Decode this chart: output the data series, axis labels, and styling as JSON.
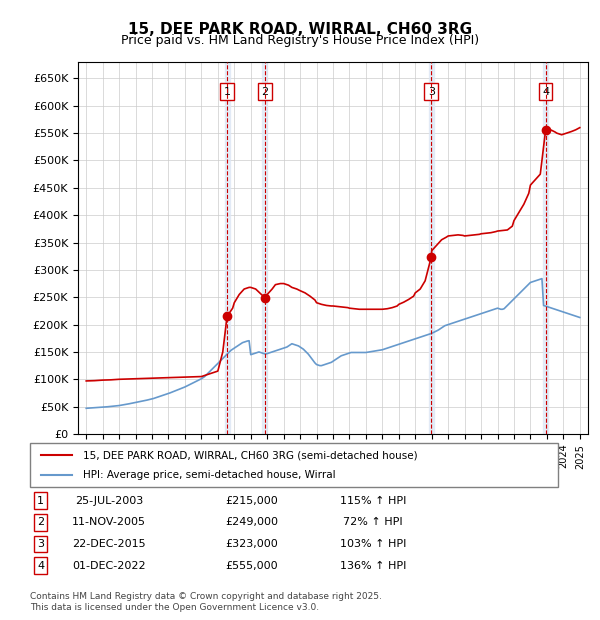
{
  "title": "15, DEE PARK ROAD, WIRRAL, CH60 3RG",
  "subtitle": "Price paid vs. HM Land Registry's House Price Index (HPI)",
  "legend_line1": "15, DEE PARK ROAD, WIRRAL, CH60 3RG (semi-detached house)",
  "legend_line2": "HPI: Average price, semi-detached house, Wirral",
  "footer": "Contains HM Land Registry data © Crown copyright and database right 2025.\nThis data is licensed under the Open Government Licence v3.0.",
  "transactions": [
    {
      "num": 1,
      "date": "25-JUL-2003",
      "date_val": 2003.56,
      "price": 215000,
      "hpi_pct": "115% ↑ HPI"
    },
    {
      "num": 2,
      "date": "11-NOV-2005",
      "date_val": 2005.86,
      "price": 249000,
      "hpi_pct": "72% ↑ HPI"
    },
    {
      "num": 3,
      "date": "22-DEC-2015",
      "date_val": 2015.97,
      "price": 323000,
      "hpi_pct": "103% ↑ HPI"
    },
    {
      "num": 4,
      "date": "01-DEC-2022",
      "date_val": 2022.92,
      "price": 555000,
      "hpi_pct": "136% ↑ HPI"
    }
  ],
  "hpi_color": "#6699cc",
  "price_color": "#cc0000",
  "ylim": [
    0,
    680000
  ],
  "yticks": [
    0,
    50000,
    100000,
    150000,
    200000,
    250000,
    300000,
    350000,
    400000,
    450000,
    500000,
    550000,
    600000,
    650000
  ],
  "xlim_start": 1994.5,
  "xlim_end": 2025.5,
  "hpi_data_x": [
    1995.0,
    1995.1,
    1995.2,
    1995.3,
    1995.4,
    1995.5,
    1995.6,
    1995.7,
    1995.8,
    1995.9,
    1996.0,
    1996.1,
    1996.2,
    1996.3,
    1996.4,
    1996.5,
    1996.6,
    1996.7,
    1996.8,
    1996.9,
    1997.0,
    1997.1,
    1997.2,
    1997.3,
    1997.4,
    1997.5,
    1997.6,
    1997.7,
    1997.8,
    1997.9,
    1998.0,
    1998.1,
    1998.2,
    1998.3,
    1998.4,
    1998.5,
    1998.6,
    1998.7,
    1998.8,
    1998.9,
    1999.0,
    1999.1,
    1999.2,
    1999.3,
    1999.4,
    1999.5,
    1999.6,
    1999.7,
    1999.8,
    1999.9,
    2000.0,
    2000.1,
    2000.2,
    2000.3,
    2000.4,
    2000.5,
    2000.6,
    2000.7,
    2000.8,
    2000.9,
    2001.0,
    2001.1,
    2001.2,
    2001.3,
    2001.4,
    2001.5,
    2001.6,
    2001.7,
    2001.8,
    2001.9,
    2002.0,
    2002.1,
    2002.2,
    2002.3,
    2002.4,
    2002.5,
    2002.6,
    2002.7,
    2002.8,
    2002.9,
    2003.0,
    2003.1,
    2003.2,
    2003.3,
    2003.4,
    2003.5,
    2003.6,
    2003.7,
    2003.8,
    2003.9,
    2004.0,
    2004.1,
    2004.2,
    2004.3,
    2004.4,
    2004.5,
    2004.6,
    2004.7,
    2004.8,
    2004.9,
    2005.0,
    2005.1,
    2005.2,
    2005.3,
    2005.4,
    2005.5,
    2005.6,
    2005.7,
    2005.8,
    2005.9,
    2006.0,
    2006.1,
    2006.2,
    2006.3,
    2006.4,
    2006.5,
    2006.6,
    2006.7,
    2006.8,
    2006.9,
    2007.0,
    2007.1,
    2007.2,
    2007.3,
    2007.4,
    2007.5,
    2007.6,
    2007.7,
    2007.8,
    2007.9,
    2008.0,
    2008.1,
    2008.2,
    2008.3,
    2008.4,
    2008.5,
    2008.6,
    2008.7,
    2008.8,
    2008.9,
    2009.0,
    2009.1,
    2009.2,
    2009.3,
    2009.4,
    2009.5,
    2009.6,
    2009.7,
    2009.8,
    2009.9,
    2010.0,
    2010.1,
    2010.2,
    2010.3,
    2010.4,
    2010.5,
    2010.6,
    2010.7,
    2010.8,
    2010.9,
    2011.0,
    2011.1,
    2011.2,
    2011.3,
    2011.4,
    2011.5,
    2011.6,
    2011.7,
    2011.8,
    2011.9,
    2012.0,
    2012.1,
    2012.2,
    2012.3,
    2012.4,
    2012.5,
    2012.6,
    2012.7,
    2012.8,
    2012.9,
    2013.0,
    2013.1,
    2013.2,
    2013.3,
    2013.4,
    2013.5,
    2013.6,
    2013.7,
    2013.8,
    2013.9,
    2014.0,
    2014.1,
    2014.2,
    2014.3,
    2014.4,
    2014.5,
    2014.6,
    2014.7,
    2014.8,
    2014.9,
    2015.0,
    2015.1,
    2015.2,
    2015.3,
    2015.4,
    2015.5,
    2015.6,
    2015.7,
    2015.8,
    2015.9,
    2016.0,
    2016.1,
    2016.2,
    2016.3,
    2016.4,
    2016.5,
    2016.6,
    2016.7,
    2016.8,
    2016.9,
    2017.0,
    2017.1,
    2017.2,
    2017.3,
    2017.4,
    2017.5,
    2017.6,
    2017.7,
    2017.8,
    2017.9,
    2018.0,
    2018.1,
    2018.2,
    2018.3,
    2018.4,
    2018.5,
    2018.6,
    2018.7,
    2018.8,
    2018.9,
    2019.0,
    2019.1,
    2019.2,
    2019.3,
    2019.4,
    2019.5,
    2019.6,
    2019.7,
    2019.8,
    2019.9,
    2020.0,
    2020.1,
    2020.2,
    2020.3,
    2020.4,
    2020.5,
    2020.6,
    2020.7,
    2020.8,
    2020.9,
    2021.0,
    2021.1,
    2021.2,
    2021.3,
    2021.4,
    2021.5,
    2021.6,
    2021.7,
    2021.8,
    2021.9,
    2022.0,
    2022.1,
    2022.2,
    2022.3,
    2022.4,
    2022.5,
    2022.6,
    2022.7,
    2022.8,
    2022.9,
    2023.0,
    2023.1,
    2023.2,
    2023.3,
    2023.4,
    2023.5,
    2023.6,
    2023.7,
    2023.8,
    2023.9,
    2024.0,
    2024.1,
    2024.2,
    2024.3,
    2024.4,
    2024.5,
    2024.6,
    2024.7,
    2024.8,
    2024.9,
    2025.0
  ],
  "hpi_data_y": [
    47000,
    47200,
    47400,
    47600,
    47800,
    48000,
    48200,
    48400,
    48600,
    48800,
    49000,
    49200,
    49500,
    49800,
    50100,
    50400,
    50700,
    51000,
    51300,
    51600,
    52000,
    52500,
    53000,
    53500,
    54000,
    54500,
    55200,
    55800,
    56400,
    57000,
    57600,
    58200,
    58800,
    59400,
    60000,
    60600,
    61300,
    62000,
    62700,
    63400,
    64000,
    65000,
    66000,
    67000,
    68000,
    69000,
    70000,
    71000,
    72000,
    73000,
    74000,
    75200,
    76400,
    77600,
    78800,
    80000,
    81200,
    82400,
    83600,
    84800,
    86000,
    87500,
    89000,
    90500,
    92000,
    93500,
    95000,
    96500,
    98000,
    99500,
    101000,
    103000,
    105000,
    108000,
    111000,
    114000,
    117000,
    120000,
    123000,
    126000,
    129000,
    132000,
    135000,
    138000,
    141000,
    144000,
    147000,
    150000,
    153000,
    155000,
    157000,
    159000,
    161000,
    163000,
    165000,
    167000,
    168000,
    169000,
    170000,
    170500,
    145000,
    146000,
    147000,
    148000,
    149000,
    150000,
    149000,
    148000,
    147000,
    146000,
    147000,
    148000,
    149000,
    150000,
    151000,
    152000,
    153000,
    154000,
    155000,
    156000,
    157000,
    158000,
    159000,
    161000,
    163000,
    165000,
    164000,
    163000,
    162000,
    161000,
    159000,
    157000,
    155000,
    152000,
    149000,
    146000,
    142000,
    138000,
    134000,
    130000,
    127000,
    126000,
    125000,
    125000,
    126000,
    127000,
    128000,
    129000,
    130000,
    131000,
    133000,
    135000,
    137000,
    139000,
    141000,
    143000,
    144000,
    145000,
    146000,
    147000,
    148000,
    149000,
    149000,
    149000,
    149000,
    149000,
    149000,
    149000,
    149000,
    149000,
    149000,
    149500,
    150000,
    150500,
    151000,
    151500,
    152000,
    152500,
    153000,
    153500,
    154000,
    155000,
    156000,
    157000,
    158000,
    159000,
    160000,
    161000,
    162000,
    163000,
    164000,
    165000,
    166000,
    167000,
    168000,
    169000,
    170000,
    171000,
    172000,
    173000,
    174000,
    175000,
    176000,
    177000,
    178000,
    179000,
    180000,
    181000,
    182000,
    183000,
    184000,
    185500,
    187000,
    188500,
    190000,
    192000,
    194000,
    196000,
    198000,
    199000,
    200000,
    201000,
    202000,
    203000,
    204000,
    205000,
    206000,
    207000,
    208000,
    209000,
    210000,
    211000,
    212000,
    213000,
    214000,
    215000,
    216000,
    217000,
    218000,
    219000,
    220000,
    221000,
    222000,
    223000,
    224000,
    225000,
    226000,
    227000,
    228000,
    229000,
    230000,
    229000,
    228000,
    228000,
    229000,
    232000,
    235000,
    238000,
    241000,
    244000,
    247000,
    250000,
    253000,
    256000,
    259000,
    262000,
    265000,
    268000,
    271000,
    274000,
    277000,
    278000,
    279000,
    280000,
    281000,
    282000,
    283000,
    284000,
    235000,
    234000,
    233000,
    232000,
    231000,
    230000,
    229000,
    228000,
    227000,
    226000,
    225000,
    224000,
    223000,
    222000,
    221000,
    220000,
    219000,
    218000,
    217000,
    216000,
    215000,
    214000,
    213000
  ],
  "price_data_x": [
    1995.0,
    1995.5,
    1996.0,
    1996.5,
    1997.0,
    1997.5,
    1998.0,
    1998.5,
    1999.0,
    1999.5,
    2000.0,
    2000.5,
    2001.0,
    2001.5,
    2002.0,
    2002.5,
    2003.0,
    2003.3,
    2003.56,
    2003.9,
    2004.0,
    2004.3,
    2004.6,
    2004.9,
    2005.0,
    2005.3,
    2005.86,
    2005.9,
    2006.0,
    2006.3,
    2006.5,
    2006.8,
    2007.0,
    2007.3,
    2007.5,
    2007.8,
    2008.0,
    2008.3,
    2008.6,
    2008.9,
    2009.0,
    2009.3,
    2009.6,
    2009.9,
    2010.0,
    2010.3,
    2010.6,
    2010.9,
    2011.0,
    2011.3,
    2011.6,
    2011.9,
    2012.0,
    2012.3,
    2012.6,
    2012.9,
    2013.0,
    2013.3,
    2013.6,
    2013.9,
    2014.0,
    2014.3,
    2014.6,
    2014.9,
    2015.0,
    2015.3,
    2015.6,
    2015.97,
    2015.99,
    2016.0,
    2016.3,
    2016.6,
    2016.9,
    2017.0,
    2017.3,
    2017.6,
    2017.9,
    2018.0,
    2018.3,
    2018.6,
    2018.9,
    2019.0,
    2019.3,
    2019.6,
    2019.9,
    2020.0,
    2020.3,
    2020.6,
    2020.9,
    2021.0,
    2021.3,
    2021.6,
    2021.9,
    2022.0,
    2022.3,
    2022.6,
    2022.92,
    2022.99,
    2023.0,
    2023.3,
    2023.5,
    2023.6,
    2023.8,
    2023.9,
    2024.0,
    2024.2,
    2024.5,
    2024.75,
    2025.0
  ],
  "price_data_y": [
    97000,
    97500,
    98500,
    99000,
    100000,
    100500,
    101000,
    101500,
    102000,
    102500,
    103000,
    103500,
    104000,
    104500,
    105000,
    110000,
    115000,
    150000,
    215000,
    230000,
    240000,
    255000,
    265000,
    268000,
    268000,
    265000,
    249000,
    250000,
    255000,
    265000,
    273000,
    275000,
    275000,
    272000,
    268000,
    265000,
    262000,
    258000,
    252000,
    245000,
    240000,
    237000,
    235000,
    234000,
    234000,
    233000,
    232000,
    231000,
    230000,
    229000,
    228000,
    228000,
    228000,
    228000,
    228000,
    228000,
    228000,
    229000,
    231000,
    234000,
    237000,
    241000,
    246000,
    252000,
    258000,
    265000,
    280000,
    323000,
    330000,
    335000,
    345000,
    355000,
    360000,
    362000,
    363000,
    364000,
    363000,
    362000,
    363000,
    364000,
    365000,
    366000,
    367000,
    368000,
    370000,
    371000,
    372000,
    373000,
    380000,
    390000,
    405000,
    420000,
    440000,
    455000,
    465000,
    475000,
    555000,
    560000,
    558000,
    555000,
    552000,
    550000,
    548000,
    547000,
    548000,
    550000,
    553000,
    556000,
    560000
  ]
}
